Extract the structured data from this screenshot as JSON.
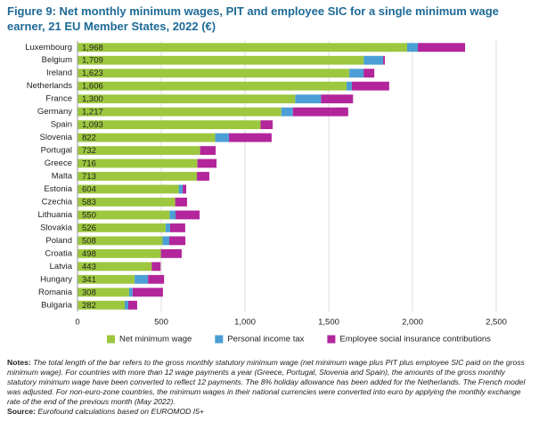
{
  "chart_data": {
    "type": "stacked-barh",
    "title": "Figure 9: Net monthly minimum wages, PIT and employee SIC for a single minimum wage earner, 21 EU Member States, 2022 (€)",
    "categories": [
      "Luxembourg",
      "Belgium",
      "Ireland",
      "Netherlands",
      "France",
      "Germany",
      "Spain",
      "Slovenia",
      "Portugal",
      "Greece",
      "Malta",
      "Estonia",
      "Czechia",
      "Lithuania",
      "Slovakia",
      "Poland",
      "Croatia",
      "Latvia",
      "Hungary",
      "Romania",
      "Bulgaria"
    ],
    "series": [
      {
        "name": "Net minimum wage",
        "color": "#9dc73f",
        "values": [
          1968,
          1709,
          1623,
          1606,
          1300,
          1217,
          1093,
          822,
          732,
          716,
          713,
          604,
          583,
          550,
          526,
          508,
          498,
          443,
          341,
          308,
          282
        ],
        "value_labels": [
          "1,968",
          "1,709",
          "1,623",
          "1,606",
          "1,300",
          "1,217",
          "1,093",
          "822",
          "732",
          "716",
          "713",
          "604",
          "583",
          "550",
          "526",
          "508",
          "498",
          "443",
          "341",
          "308",
          "282"
        ]
      },
      {
        "name": "Personal income tax",
        "color": "#4b9fd6",
        "values": [
          64,
          116,
          85,
          32,
          154,
          69,
          0,
          82,
          0,
          0,
          0,
          24,
          0,
          35,
          27,
          40,
          0,
          0,
          80,
          21,
          21
        ]
      },
      {
        "name": "Employee social insurance contributions",
        "color": "#b3259b",
        "values": [
          282,
          10,
          64,
          223,
          191,
          330,
          72,
          255,
          93,
          114,
          74,
          21,
          71,
          144,
          90,
          96,
          124,
          53,
          96,
          181,
          53
        ]
      }
    ],
    "xlim": [
      0,
      2500
    ],
    "xticks": [
      0,
      500,
      {
        "value": 1000,
        "label": "1,000"
      },
      {
        "value": 1500,
        "label": "1,500"
      },
      {
        "value": 2000,
        "label": "2,000"
      },
      {
        "value": 2500,
        "label": "2,500"
      }
    ],
    "grid": true,
    "notes_label": "Notes:",
    "notes": "The total length of the bar refers to the gross monthly statutory minimum wage (net minimum wage plus PIT plus employee SIC paid on the gross minimum wage). For countries with more than 12 wage payments a year (Greece, Portugal, Slovenia and Spain), the amounts of the gross monthly statutory minimum wage have been converted to reflect 12 payments. The 8% holiday allowance has been added for the Netherlands. The French model was adjusted. For non-euro-zone countries, the minimum wages in their national currencies were converted into euro by applying the monthly exchange rate of the end of the previous month (May 2022).",
    "source_label": "Source:",
    "source": "Eurofound calculations based on EUROMOD I5+"
  }
}
